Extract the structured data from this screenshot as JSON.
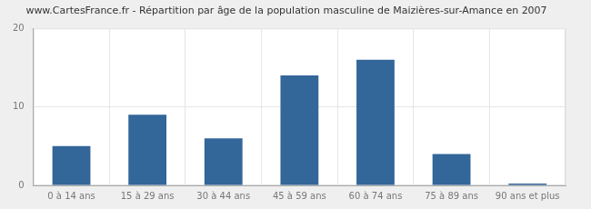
{
  "chart_data": {
    "type": "bar",
    "title": "www.CartesFrance.fr - Répartition par âge de la population masculine de Maizières-sur-Amance en 2007",
    "categories": [
      "0 à 14 ans",
      "15 à 29 ans",
      "30 à 44 ans",
      "45 à 59 ans",
      "60 à 74 ans",
      "75 à 89 ans",
      "90 ans et plus"
    ],
    "values": [
      5,
      9,
      6,
      14,
      16,
      4,
      0
    ],
    "color": "#336699",
    "ylim": [
      0,
      20
    ],
    "yticks": [
      0,
      10,
      20
    ],
    "grid": true
  }
}
